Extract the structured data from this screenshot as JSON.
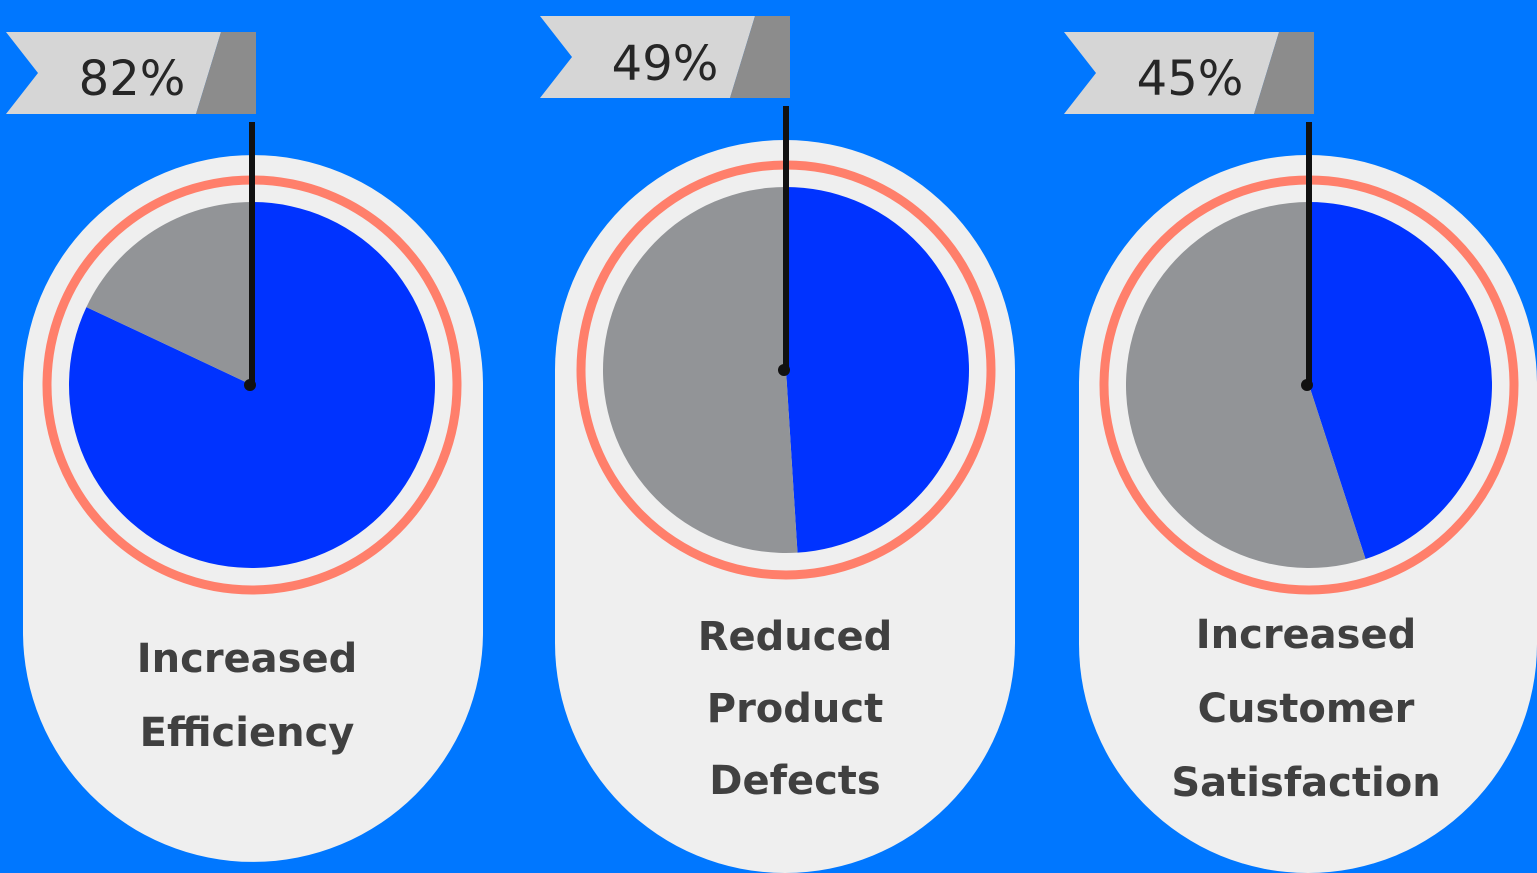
{
  "background_color": "#0077FF",
  "chart_data": [
    {
      "type": "pie",
      "title": "",
      "value_label": "82%",
      "value": 82,
      "label_lines": [
        "Increased",
        "Efficiency"
      ],
      "slices": [
        {
          "name": "filled",
          "value": 82,
          "color": "#0033FF"
        },
        {
          "name": "remaining",
          "value": 18,
          "color": "#929497"
        }
      ]
    },
    {
      "type": "pie",
      "title": "",
      "value_label": "49%",
      "value": 49,
      "label_lines": [
        "Reduced",
        "Product",
        "Defects"
      ],
      "slices": [
        {
          "name": "filled",
          "value": 49,
          "color": "#0033FF"
        },
        {
          "name": "remaining",
          "value": 51,
          "color": "#929497"
        }
      ]
    },
    {
      "type": "pie",
      "title": "",
      "value_label": "45%",
      "value": 45,
      "label_lines": [
        "Increased",
        "Customer",
        "Satisfaction"
      ],
      "slices": [
        {
          "name": "filled",
          "value": 45,
          "color": "#0033FF"
        },
        {
          "name": "remaining",
          "value": 55,
          "color": "#929497"
        }
      ]
    }
  ],
  "colors": {
    "card": "#EFEFEF",
    "ring": "#FF7F6B",
    "flag_light": "#D6D6D6",
    "flag_dark": "#8C8C8C",
    "pointer": "#111111"
  }
}
